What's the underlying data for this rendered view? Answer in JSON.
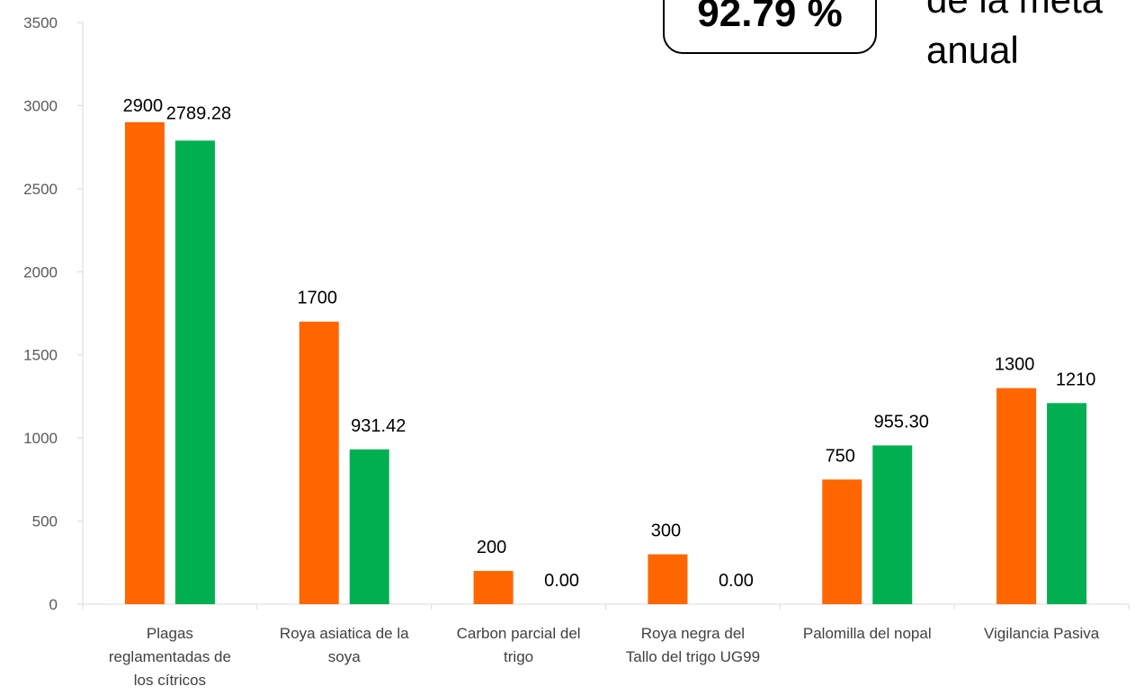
{
  "chart_data": {
    "type": "bar",
    "categories": [
      [
        "Plagas",
        "reglamentadas de",
        "los cítricos"
      ],
      [
        "Roya asiatica de la",
        "soya"
      ],
      [
        "Carbon parcial del",
        "trigo"
      ],
      [
        "Roya negra del",
        "Tallo del trigo UG99"
      ],
      [
        "Palomilla del nopal"
      ],
      [
        "Vigilancia Pasiva"
      ]
    ],
    "series": [
      {
        "color": "#ff6600",
        "values": [
          2900,
          1700,
          200,
          300,
          750,
          1300
        ],
        "labels": [
          "2900",
          "1700",
          "200",
          "300",
          "750",
          "1300"
        ]
      },
      {
        "color": "#00b050",
        "values": [
          2789.28,
          931.42,
          0,
          0,
          955.3,
          1210
        ],
        "labels": [
          "2789.28",
          "931.42",
          "0.00",
          "0.00",
          "955.30",
          "1210"
        ]
      }
    ],
    "ylim": [
      0,
      3500
    ],
    "yticks": [
      0,
      500,
      1000,
      1500,
      2000,
      2500,
      3000,
      3500
    ],
    "grid": false
  },
  "callout": {
    "percent": "92.79 %",
    "text_lines": [
      "de la meta",
      "anual"
    ]
  }
}
